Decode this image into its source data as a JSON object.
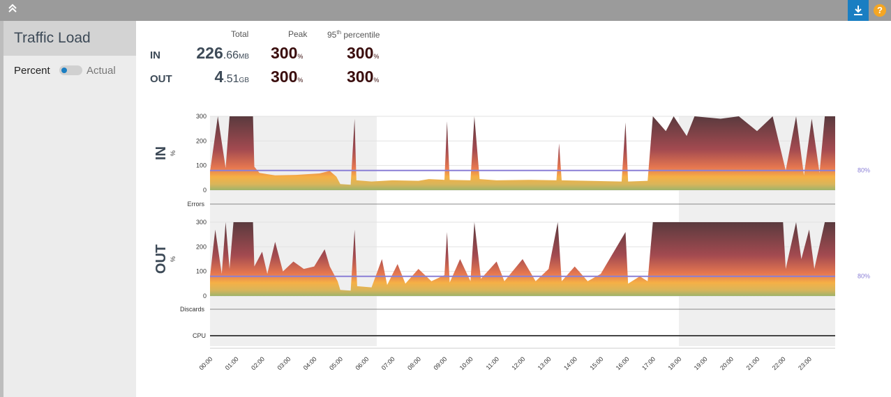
{
  "toolbar": {
    "collapse_icon": "double-chevron-up-icon",
    "download_icon": "download-icon",
    "help_icon": "help-icon",
    "help_glyph": "?"
  },
  "sidebar": {
    "title": "Traffic Load",
    "toggle_left": "Percent",
    "toggle_right": "Actual"
  },
  "summary": {
    "headers": {
      "total": "Total",
      "peak": "Peak",
      "p95_base": "95",
      "p95_sup": "th",
      "p95_rest": " percentile"
    },
    "rows": [
      {
        "label": "IN",
        "total_int": "226",
        "total_frac": ".66",
        "total_unit": "MB",
        "peak": "300",
        "peak_unit": "%",
        "p95": "300",
        "p95_unit": "%"
      },
      {
        "label": "OUT",
        "total_int": "4",
        "total_frac": ".51",
        "total_unit": "GB",
        "peak": "300",
        "peak_unit": "%",
        "p95": "300",
        "p95_unit": "%"
      }
    ]
  },
  "chart_data": [
    {
      "type": "area",
      "title": "IN",
      "ylabel": "%",
      "ylim": [
        0,
        300
      ],
      "yticks": [
        "300",
        "200",
        "100",
        "0"
      ],
      "threshold": 80,
      "threshold_label": "80%",
      "x_ticks": [
        "00:00",
        "01:00",
        "02:00",
        "03:00",
        "04:00",
        "05:00",
        "06:00",
        "07:00",
        "08:00",
        "09:00",
        "10:00",
        "11:00",
        "12:00",
        "13:00",
        "14:00",
        "15:00",
        "16:00",
        "17:00",
        "18:00",
        "19:00",
        "20:00",
        "21:00",
        "22:00",
        "23:00"
      ],
      "shaded_hours": [
        [
          0,
          6.4
        ],
        [
          18.0,
          24.0
        ]
      ],
      "points": [
        [
          0,
          75
        ],
        [
          0.3,
          300
        ],
        [
          0.6,
          90
        ],
        [
          0.75,
          300
        ],
        [
          1.65,
          300
        ],
        [
          1.7,
          95
        ],
        [
          1.9,
          70
        ],
        [
          2.5,
          60
        ],
        [
          3.3,
          62
        ],
        [
          4.2,
          68
        ],
        [
          4.6,
          78
        ],
        [
          4.85,
          55
        ],
        [
          5.0,
          25
        ],
        [
          5.4,
          22
        ],
        [
          5.55,
          290
        ],
        [
          5.62,
          40
        ],
        [
          6.2,
          35
        ],
        [
          7,
          40
        ],
        [
          8,
          38
        ],
        [
          8.4,
          45
        ],
        [
          9.0,
          42
        ],
        [
          9.1,
          280
        ],
        [
          9.2,
          42
        ],
        [
          10.0,
          40
        ],
        [
          10.15,
          300
        ],
        [
          10.35,
          45
        ],
        [
          11,
          40
        ],
        [
          12.2,
          42
        ],
        [
          13.3,
          40
        ],
        [
          13.4,
          190
        ],
        [
          13.5,
          40
        ],
        [
          14.5,
          38
        ],
        [
          15.8,
          35
        ],
        [
          15.95,
          275
        ],
        [
          16.05,
          35
        ],
        [
          16.8,
          38
        ],
        [
          17.0,
          300
        ],
        [
          17.5,
          240
        ],
        [
          17.8,
          300
        ],
        [
          18.3,
          220
        ],
        [
          18.6,
          300
        ],
        [
          19.6,
          290
        ],
        [
          20.3,
          300
        ],
        [
          21.0,
          240
        ],
        [
          21.6,
          300
        ],
        [
          22.1,
          80
        ],
        [
          22.5,
          300
        ],
        [
          22.8,
          60
        ],
        [
          23.1,
          290
        ],
        [
          23.4,
          70
        ],
        [
          23.6,
          300
        ],
        [
          24,
          300
        ]
      ]
    },
    {
      "type": "area",
      "title": "OUT",
      "ylabel": "%",
      "ylim": [
        0,
        300
      ],
      "yticks": [
        "300",
        "200",
        "100",
        "0"
      ],
      "threshold": 80,
      "threshold_label": "80%",
      "x_ticks": [
        "00:00",
        "01:00",
        "02:00",
        "03:00",
        "04:00",
        "05:00",
        "06:00",
        "07:00",
        "08:00",
        "09:00",
        "10:00",
        "11:00",
        "12:00",
        "13:00",
        "14:00",
        "15:00",
        "16:00",
        "17:00",
        "18:00",
        "19:00",
        "20:00",
        "21:00",
        "22:00",
        "23:00"
      ],
      "shaded_hours": [
        [
          0,
          6.4
        ],
        [
          18.0,
          24.0
        ]
      ],
      "points": [
        [
          0,
          80
        ],
        [
          0.2,
          270
        ],
        [
          0.45,
          90
        ],
        [
          0.6,
          300
        ],
        [
          0.75,
          110
        ],
        [
          0.9,
          300
        ],
        [
          1.65,
          300
        ],
        [
          1.7,
          120
        ],
        [
          2.0,
          180
        ],
        [
          2.2,
          90
        ],
        [
          2.5,
          220
        ],
        [
          2.8,
          100
        ],
        [
          3.2,
          140
        ],
        [
          3.6,
          110
        ],
        [
          4.0,
          120
        ],
        [
          4.4,
          190
        ],
        [
          4.6,
          120
        ],
        [
          4.9,
          60
        ],
        [
          5.0,
          25
        ],
        [
          5.4,
          22
        ],
        [
          5.55,
          270
        ],
        [
          5.65,
          40
        ],
        [
          6.2,
          35
        ],
        [
          6.6,
          150
        ],
        [
          6.8,
          45
        ],
        [
          7.2,
          130
        ],
        [
          7.5,
          50
        ],
        [
          8.0,
          110
        ],
        [
          8.5,
          60
        ],
        [
          9.0,
          85
        ],
        [
          9.1,
          260
        ],
        [
          9.2,
          55
        ],
        [
          9.6,
          150
        ],
        [
          10.0,
          60
        ],
        [
          10.15,
          300
        ],
        [
          10.4,
          70
        ],
        [
          11,
          140
        ],
        [
          11.3,
          60
        ],
        [
          12.0,
          150
        ],
        [
          12.5,
          60
        ],
        [
          13.0,
          110
        ],
        [
          13.35,
          300
        ],
        [
          13.5,
          60
        ],
        [
          14.0,
          120
        ],
        [
          14.5,
          60
        ],
        [
          15.0,
          90
        ],
        [
          15.95,
          260
        ],
        [
          16.05,
          50
        ],
        [
          16.5,
          80
        ],
        [
          16.8,
          60
        ],
        [
          17.0,
          300
        ],
        [
          18.0,
          300
        ],
        [
          22.0,
          300
        ],
        [
          22.1,
          110
        ],
        [
          22.5,
          300
        ],
        [
          22.7,
          150
        ],
        [
          23.0,
          270
        ],
        [
          23.2,
          110
        ],
        [
          23.6,
          300
        ],
        [
          24,
          300
        ]
      ]
    }
  ],
  "strips": {
    "errors_label": "Errors",
    "discards_label": "Discards",
    "cpu_label": "CPU"
  }
}
